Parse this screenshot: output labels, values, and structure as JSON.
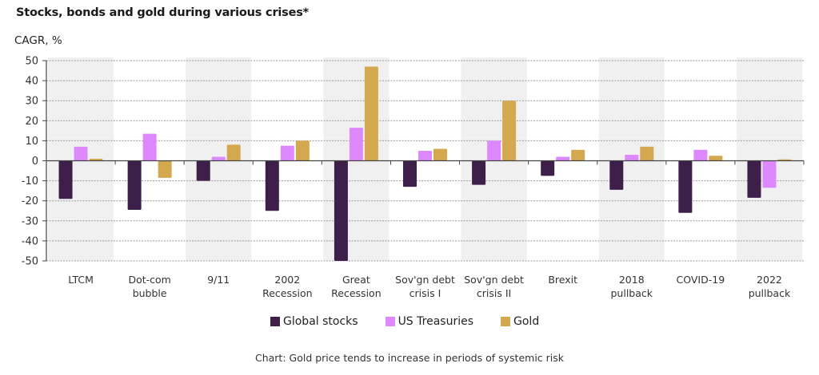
{
  "chart_data": {
    "type": "bar",
    "title": "Stocks, bonds and gold during various crises*",
    "ylabel": "CAGR, %",
    "xlabel": "",
    "ylim": [
      -50,
      50
    ],
    "yticks": [
      50,
      40,
      30,
      20,
      10,
      0,
      -10,
      -20,
      -30,
      -40,
      -50
    ],
    "grid": true,
    "legend_position": "bottom",
    "categories": [
      [
        "LTCM"
      ],
      [
        "Dot-com",
        "bubble"
      ],
      [
        "9/11"
      ],
      [
        "2002",
        "Recession"
      ],
      [
        "Great",
        "Recession"
      ],
      [
        "Sov'gn debt",
        "crisis I"
      ],
      [
        "Sov'gn debt",
        "crisis II"
      ],
      [
        "Brexit"
      ],
      [
        "2018",
        "pullback"
      ],
      [
        "COVID-19"
      ],
      [
        "2022",
        "pullback"
      ]
    ],
    "series": [
      {
        "name": "Global stocks",
        "color": "#3d1f4a",
        "values": [
          -19,
          -24.5,
          -10,
          -25,
          -50,
          -13,
          -12,
          -7.5,
          -14.5,
          -26,
          -18.5
        ]
      },
      {
        "name": "US Treasuries",
        "color": "#dd88ff",
        "values": [
          7,
          13.5,
          2,
          7.5,
          16.5,
          5,
          10,
          2,
          3,
          5.5,
          -13.5
        ]
      },
      {
        "name": "Gold",
        "color": "#d4a84e",
        "values": [
          1,
          -8.5,
          8,
          10,
          47,
          6,
          30,
          5.5,
          7,
          2.5,
          0.7
        ]
      }
    ],
    "caption": "Chart: Gold price tends to increase in periods of systemic risk"
  }
}
